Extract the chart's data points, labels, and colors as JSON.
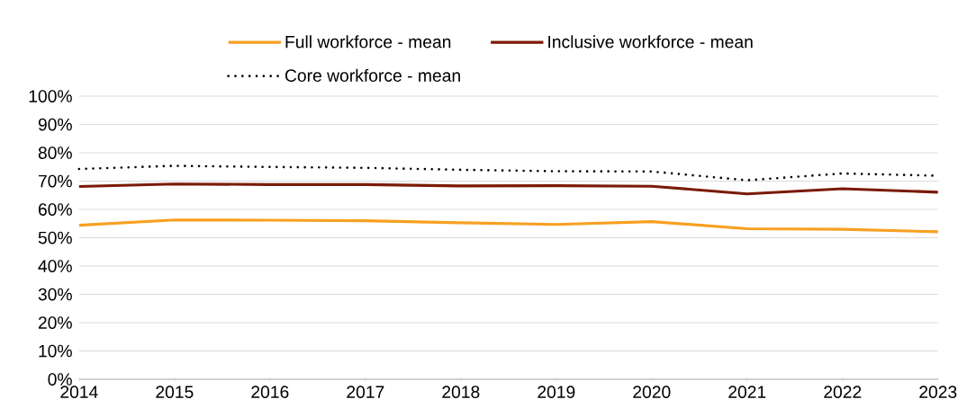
{
  "chart_data": {
    "type": "line",
    "x": [
      2014,
      2015,
      2016,
      2017,
      2018,
      2019,
      2020,
      2021,
      2022,
      2023
    ],
    "series": [
      {
        "name": "Full workforce - mean",
        "color": "#f7a021",
        "line_style": "solid",
        "values": [
          54.4,
          56.3,
          56.2,
          56.0,
          55.3,
          54.7,
          55.7,
          53.2,
          53.0,
          52.1
        ]
      },
      {
        "name": "Inclusive workforce - mean",
        "color": "#7b1a06",
        "line_style": "solid",
        "values": [
          68.1,
          69.0,
          68.8,
          68.8,
          68.3,
          68.4,
          68.2,
          65.5,
          67.3,
          66.1
        ]
      },
      {
        "name": "Core workforce - mean",
        "color": "#000000",
        "line_style": "dotted",
        "values": [
          74.3,
          75.4,
          75.0,
          74.7,
          74.0,
          73.5,
          73.4,
          70.3,
          72.7,
          71.9
        ]
      }
    ],
    "xlim": [
      2014,
      2023
    ],
    "xticks": [
      2014,
      2015,
      2016,
      2017,
      2018,
      2019,
      2020,
      2021,
      2022,
      2023
    ],
    "ylim": [
      0,
      100
    ],
    "yticks": [
      {
        "value": 0,
        "label": "0%"
      },
      {
        "value": 10,
        "label": "10%"
      },
      {
        "value": 20,
        "label": "20%"
      },
      {
        "value": 30,
        "label": "30%"
      },
      {
        "value": 40,
        "label": "40%"
      },
      {
        "value": 50,
        "label": "50%"
      },
      {
        "value": 60,
        "label": "60%"
      },
      {
        "value": 70,
        "label": "70%"
      },
      {
        "value": 80,
        "label": "80%"
      },
      {
        "value": 90,
        "label": "90%"
      },
      {
        "value": 100,
        "label": "100%"
      }
    ],
    "grid": "y",
    "legend": "top",
    "marker": "none"
  }
}
